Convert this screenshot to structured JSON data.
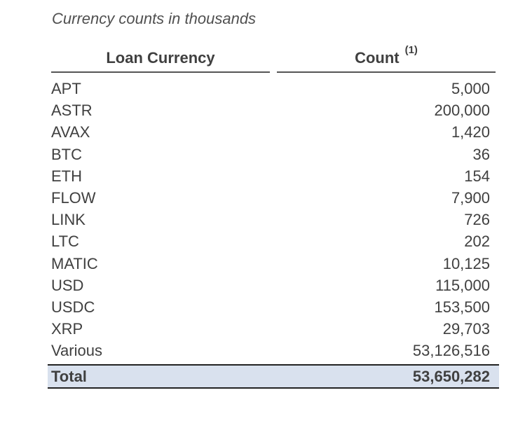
{
  "caption": "Currency counts in thousands",
  "headers": {
    "currency": "Loan Currency",
    "count": "Count",
    "count_footnote": "(1)"
  },
  "rows": [
    {
      "currency": "APT",
      "count": "5,000"
    },
    {
      "currency": "ASTR",
      "count": "200,000"
    },
    {
      "currency": "AVAX",
      "count": "1,420"
    },
    {
      "currency": "BTC",
      "count": "36"
    },
    {
      "currency": "ETH",
      "count": "154"
    },
    {
      "currency": "FLOW",
      "count": "7,900"
    },
    {
      "currency": "LINK",
      "count": "726"
    },
    {
      "currency": "LTC",
      "count": "202"
    },
    {
      "currency": "MATIC",
      "count": "10,125"
    },
    {
      "currency": "USD",
      "count": "115,000"
    },
    {
      "currency": "USDC",
      "count": "153,500"
    },
    {
      "currency": "XRP",
      "count": "29,703"
    },
    {
      "currency": "Various",
      "count": "53,126,516"
    }
  ],
  "total": {
    "label": "Total",
    "count": "53,650,282"
  },
  "colors": {
    "total_bg": "#d9e1ee",
    "text": "#404040"
  }
}
